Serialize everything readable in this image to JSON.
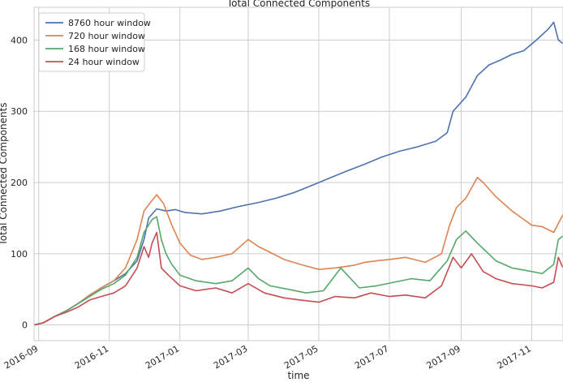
{
  "chart_data": {
    "type": "line",
    "title": "Total Connected Components",
    "xlabel": "time",
    "ylabel": "Total Connected Components",
    "x_range": [
      "2016-08-28",
      "2017-11-28"
    ],
    "ylim": [
      -22,
      446
    ],
    "y_ticks": [
      0,
      100,
      200,
      300,
      400
    ],
    "x_ticks": [
      {
        "date": "2016-09-01",
        "label": "2016-09"
      },
      {
        "date": "2016-11-01",
        "label": "2016-11"
      },
      {
        "date": "2017-01-01",
        "label": "2017-01"
      },
      {
        "date": "2017-03-01",
        "label": "2017-03"
      },
      {
        "date": "2017-05-01",
        "label": "2017-05"
      },
      {
        "date": "2017-07-01",
        "label": "2017-07"
      },
      {
        "date": "2017-09-01",
        "label": "2017-09"
      },
      {
        "date": "2017-11-01",
        "label": "2017-11"
      }
    ],
    "grid": true,
    "legend_position": "top-left",
    "series": [
      {
        "name": "8760 hour window",
        "color": "#4c72b0",
        "points": [
          [
            "2016-08-28",
            0
          ],
          [
            "2016-09-05",
            3
          ],
          [
            "2016-09-15",
            12
          ],
          [
            "2016-09-25",
            20
          ],
          [
            "2016-10-05",
            30
          ],
          [
            "2016-10-15",
            42
          ],
          [
            "2016-10-25",
            52
          ],
          [
            "2016-11-05",
            62
          ],
          [
            "2016-11-15",
            72
          ],
          [
            "2016-11-25",
            90
          ],
          [
            "2016-12-01",
            120
          ],
          [
            "2016-12-05",
            150
          ],
          [
            "2016-12-12",
            163
          ],
          [
            "2016-12-20",
            160
          ],
          [
            "2016-12-28",
            162
          ],
          [
            "2017-01-05",
            158
          ],
          [
            "2017-01-20",
            156
          ],
          [
            "2017-02-05",
            160
          ],
          [
            "2017-02-20",
            166
          ],
          [
            "2017-03-10",
            172
          ],
          [
            "2017-03-25",
            178
          ],
          [
            "2017-04-10",
            186
          ],
          [
            "2017-04-25",
            196
          ],
          [
            "2017-05-10",
            206
          ],
          [
            "2017-05-25",
            216
          ],
          [
            "2017-06-10",
            226
          ],
          [
            "2017-06-25",
            236
          ],
          [
            "2017-07-10",
            244
          ],
          [
            "2017-07-25",
            250
          ],
          [
            "2017-08-10",
            258
          ],
          [
            "2017-08-20",
            270
          ],
          [
            "2017-08-25",
            300
          ],
          [
            "2017-09-05",
            320
          ],
          [
            "2017-09-15",
            350
          ],
          [
            "2017-09-25",
            365
          ],
          [
            "2017-10-05",
            372
          ],
          [
            "2017-10-15",
            380
          ],
          [
            "2017-10-25",
            385
          ],
          [
            "2017-11-05",
            400
          ],
          [
            "2017-11-15",
            415
          ],
          [
            "2017-11-20",
            425
          ],
          [
            "2017-11-24",
            400
          ],
          [
            "2017-11-28",
            395
          ]
        ]
      },
      {
        "name": "720 hour window",
        "color": "#dd8452",
        "points": [
          [
            "2016-08-28",
            0
          ],
          [
            "2016-09-05",
            3
          ],
          [
            "2016-09-15",
            12
          ],
          [
            "2016-09-25",
            20
          ],
          [
            "2016-10-05",
            30
          ],
          [
            "2016-10-15",
            42
          ],
          [
            "2016-10-25",
            52
          ],
          [
            "2016-11-05",
            62
          ],
          [
            "2016-11-15",
            80
          ],
          [
            "2016-11-25",
            120
          ],
          [
            "2016-12-01",
            160
          ],
          [
            "2016-12-08",
            175
          ],
          [
            "2016-12-12",
            183
          ],
          [
            "2016-12-18",
            170
          ],
          [
            "2016-12-25",
            140
          ],
          [
            "2017-01-01",
            115
          ],
          [
            "2017-01-10",
            98
          ],
          [
            "2017-01-20",
            92
          ],
          [
            "2017-02-01",
            95
          ],
          [
            "2017-02-15",
            100
          ],
          [
            "2017-03-01",
            120
          ],
          [
            "2017-03-10",
            110
          ],
          [
            "2017-03-20",
            102
          ],
          [
            "2017-04-01",
            92
          ],
          [
            "2017-04-15",
            85
          ],
          [
            "2017-05-01",
            78
          ],
          [
            "2017-05-15",
            80
          ],
          [
            "2017-06-01",
            84
          ],
          [
            "2017-06-10",
            88
          ],
          [
            "2017-06-20",
            90
          ],
          [
            "2017-07-01",
            92
          ],
          [
            "2017-07-15",
            95
          ],
          [
            "2017-08-01",
            88
          ],
          [
            "2017-08-15",
            100
          ],
          [
            "2017-08-22",
            140
          ],
          [
            "2017-08-28",
            165
          ],
          [
            "2017-09-05",
            178
          ],
          [
            "2017-09-15",
            207
          ],
          [
            "2017-09-20",
            200
          ],
          [
            "2017-10-01",
            180
          ],
          [
            "2017-10-15",
            160
          ],
          [
            "2017-11-01",
            140
          ],
          [
            "2017-11-10",
            138
          ],
          [
            "2017-11-20",
            130
          ],
          [
            "2017-11-28",
            155
          ]
        ]
      },
      {
        "name": "168 hour window",
        "color": "#55a868",
        "points": [
          [
            "2016-08-28",
            0
          ],
          [
            "2016-09-05",
            3
          ],
          [
            "2016-09-15",
            12
          ],
          [
            "2016-09-25",
            20
          ],
          [
            "2016-10-05",
            30
          ],
          [
            "2016-10-15",
            40
          ],
          [
            "2016-10-25",
            50
          ],
          [
            "2016-11-05",
            58
          ],
          [
            "2016-11-15",
            70
          ],
          [
            "2016-11-25",
            95
          ],
          [
            "2016-12-01",
            130
          ],
          [
            "2016-12-08",
            148
          ],
          [
            "2016-12-12",
            152
          ],
          [
            "2016-12-16",
            120
          ],
          [
            "2016-12-20",
            100
          ],
          [
            "2016-12-25",
            85
          ],
          [
            "2017-01-01",
            70
          ],
          [
            "2017-01-15",
            62
          ],
          [
            "2017-02-01",
            58
          ],
          [
            "2017-02-15",
            62
          ],
          [
            "2017-03-01",
            80
          ],
          [
            "2017-03-10",
            65
          ],
          [
            "2017-03-20",
            55
          ],
          [
            "2017-04-05",
            50
          ],
          [
            "2017-04-20",
            45
          ],
          [
            "2017-05-05",
            48
          ],
          [
            "2017-05-20",
            80
          ],
          [
            "2017-06-05",
            52
          ],
          [
            "2017-06-20",
            55
          ],
          [
            "2017-07-05",
            60
          ],
          [
            "2017-07-20",
            65
          ],
          [
            "2017-08-05",
            62
          ],
          [
            "2017-08-20",
            90
          ],
          [
            "2017-08-28",
            120
          ],
          [
            "2017-09-05",
            132
          ],
          [
            "2017-09-15",
            115
          ],
          [
            "2017-10-01",
            90
          ],
          [
            "2017-10-15",
            80
          ],
          [
            "2017-11-01",
            75
          ],
          [
            "2017-11-10",
            72
          ],
          [
            "2017-11-20",
            85
          ],
          [
            "2017-11-24",
            120
          ],
          [
            "2017-11-28",
            125
          ]
        ]
      },
      {
        "name": "24 hour window",
        "color": "#c44e52",
        "points": [
          [
            "2016-08-28",
            0
          ],
          [
            "2016-09-05",
            3
          ],
          [
            "2016-09-15",
            12
          ],
          [
            "2016-09-25",
            18
          ],
          [
            "2016-10-05",
            25
          ],
          [
            "2016-10-15",
            35
          ],
          [
            "2016-10-25",
            40
          ],
          [
            "2016-11-05",
            45
          ],
          [
            "2016-11-15",
            55
          ],
          [
            "2016-11-25",
            80
          ],
          [
            "2016-12-01",
            110
          ],
          [
            "2016-12-05",
            95
          ],
          [
            "2016-12-08",
            115
          ],
          [
            "2016-12-12",
            130
          ],
          [
            "2016-12-16",
            80
          ],
          [
            "2016-12-22",
            70
          ],
          [
            "2017-01-01",
            55
          ],
          [
            "2017-01-15",
            48
          ],
          [
            "2017-02-01",
            52
          ],
          [
            "2017-02-15",
            45
          ],
          [
            "2017-03-01",
            58
          ],
          [
            "2017-03-15",
            45
          ],
          [
            "2017-04-01",
            38
          ],
          [
            "2017-04-15",
            35
          ],
          [
            "2017-05-01",
            32
          ],
          [
            "2017-05-15",
            40
          ],
          [
            "2017-06-01",
            38
          ],
          [
            "2017-06-15",
            45
          ],
          [
            "2017-07-01",
            40
          ],
          [
            "2017-07-15",
            42
          ],
          [
            "2017-08-01",
            38
          ],
          [
            "2017-08-15",
            55
          ],
          [
            "2017-08-25",
            95
          ],
          [
            "2017-09-01",
            80
          ],
          [
            "2017-09-10",
            100
          ],
          [
            "2017-09-20",
            75
          ],
          [
            "2017-10-01",
            65
          ],
          [
            "2017-10-15",
            58
          ],
          [
            "2017-11-01",
            55
          ],
          [
            "2017-11-10",
            52
          ],
          [
            "2017-11-20",
            60
          ],
          [
            "2017-11-24",
            95
          ],
          [
            "2017-11-28",
            80
          ]
        ]
      }
    ]
  }
}
